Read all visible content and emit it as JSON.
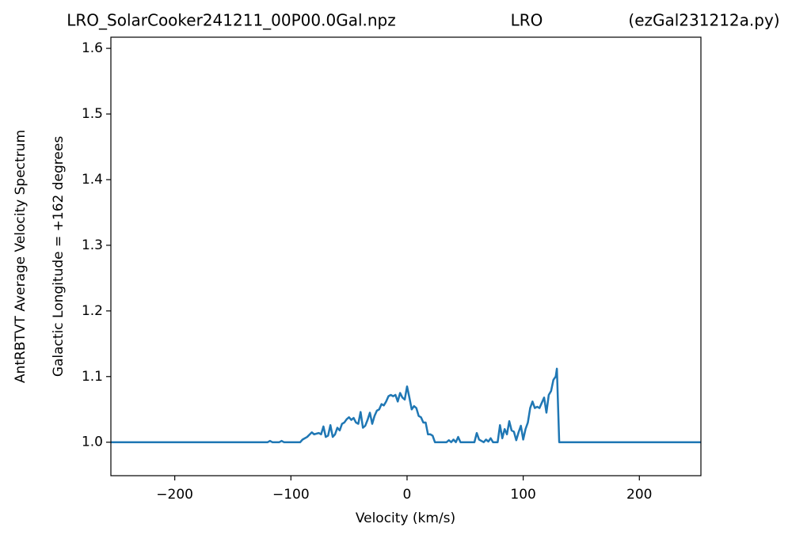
{
  "chart_data": {
    "type": "line",
    "title_parts": [
      "LRO_SolarCooker241211_00P00.0Gal.npz",
      "LRO",
      "(ezGal231212a.py)"
    ],
    "ylabel_lines": [
      "AntRBTVT Average Velocity Spectrum",
      "Galactic Longitude = +162 degrees"
    ],
    "xlabel": "Velocity (km/s)",
    "xlim": [
      -255,
      253
    ],
    "ylim": [
      0.949,
      1.617
    ],
    "xticks": [
      {
        "value": -200,
        "label": "−200"
      },
      {
        "value": -100,
        "label": "−100"
      },
      0,
      100,
      200
    ],
    "yticks": [
      {
        "value": 1,
        "label": "1.0"
      },
      1.1,
      1.2,
      1.3,
      1.4,
      1.5,
      1.6
    ],
    "grid": false,
    "series": [
      {
        "color": "#1f77b4",
        "x": [
          -255,
          -120,
          -118,
          -116,
          -110,
          -108,
          -106,
          -92,
          -90,
          -86,
          -82,
          -80,
          -76,
          -74,
          -72,
          -70,
          -68,
          -66,
          -64,
          -62,
          -60,
          -58,
          -56,
          -54,
          -52,
          -50,
          -48,
          -46,
          -44,
          -42,
          -40,
          -38,
          -36,
          -34,
          -32,
          -30,
          -28,
          -26,
          -24,
          -22,
          -20,
          -18,
          -16,
          -14,
          -12,
          -10,
          -8,
          -6,
          -4,
          -2,
          0,
          2,
          4,
          6,
          8,
          10,
          12,
          14,
          16,
          18,
          20,
          22,
          24,
          34,
          36,
          38,
          40,
          42,
          44,
          46,
          58,
          60,
          62,
          64,
          66,
          68,
          70,
          72,
          74,
          78,
          80,
          82,
          84,
          86,
          88,
          90,
          92,
          94,
          96,
          98,
          100,
          102,
          104,
          106,
          108,
          110,
          112,
          114,
          116,
          118,
          120,
          122,
          124,
          126,
          128,
          129,
          131,
          253
        ],
        "values": [
          1.0,
          1.0,
          1.002,
          1.0,
          1.0,
          1.002,
          1.0,
          1.0,
          1.004,
          1.008,
          1.015,
          1.012,
          1.014,
          1.012,
          1.024,
          1.008,
          1.01,
          1.026,
          1.008,
          1.012,
          1.022,
          1.018,
          1.028,
          1.03,
          1.035,
          1.038,
          1.034,
          1.037,
          1.03,
          1.028,
          1.046,
          1.022,
          1.025,
          1.034,
          1.045,
          1.028,
          1.04,
          1.048,
          1.05,
          1.058,
          1.056,
          1.062,
          1.07,
          1.072,
          1.07,
          1.072,
          1.062,
          1.075,
          1.068,
          1.065,
          1.085,
          1.068,
          1.05,
          1.055,
          1.052,
          1.04,
          1.038,
          1.03,
          1.03,
          1.012,
          1.012,
          1.01,
          1.0,
          1.0,
          1.003,
          1.0,
          1.004,
          1.0,
          1.008,
          1.0,
          1.0,
          1.014,
          1.004,
          1.002,
          1.0,
          1.004,
          1.001,
          1.006,
          1.0,
          1.0,
          1.026,
          1.006,
          1.02,
          1.012,
          1.032,
          1.018,
          1.016,
          1.003,
          1.015,
          1.025,
          1.004,
          1.02,
          1.03,
          1.052,
          1.062,
          1.052,
          1.054,
          1.052,
          1.06,
          1.068,
          1.045,
          1.072,
          1.078,
          1.095,
          1.1,
          1.112,
          1.0,
          1.0
        ]
      }
    ]
  }
}
